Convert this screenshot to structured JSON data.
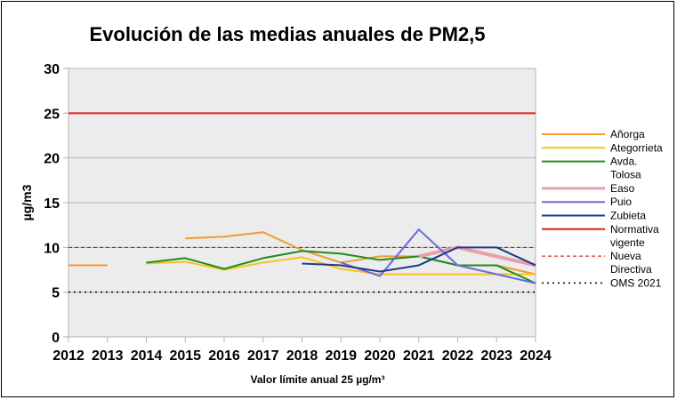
{
  "chart_data": {
    "type": "line",
    "title": "Evolución de las medias anuales de PM2,5",
    "xlabel": "Valor límite anual 25 µg/m³",
    "ylabel": "µg/m3",
    "ylim": [
      0,
      30
    ],
    "yticks": [
      0,
      5,
      10,
      15,
      20,
      25,
      30
    ],
    "x": [
      2012,
      2013,
      2014,
      2015,
      2016,
      2017,
      2018,
      2019,
      2020,
      2021,
      2022,
      2023,
      2024
    ],
    "grid": true,
    "legend_position": "right",
    "series": [
      {
        "name": "Añorga",
        "color": "#f39a2e",
        "width": 2,
        "dash": "",
        "values": [
          8,
          8,
          null,
          11,
          11.2,
          11.7,
          9.7,
          8.3,
          9,
          9,
          8,
          8,
          7
        ]
      },
      {
        "name": "Ategorrieta",
        "color": "#f5c518",
        "width": 2,
        "dash": "",
        "values": [
          null,
          null,
          8.2,
          8.4,
          7.5,
          8.3,
          8.9,
          7.6,
          7,
          7,
          7,
          7,
          7
        ]
      },
      {
        "name": "Avda.\nTolosa",
        "color": "#1e8c1e",
        "width": 2,
        "dash": "",
        "values": [
          null,
          null,
          8.3,
          8.8,
          7.6,
          8.8,
          9.6,
          9.3,
          8.6,
          9,
          8,
          8,
          6
        ]
      },
      {
        "name": "Easo",
        "color": "#e8a0a8",
        "width": 4,
        "dash": "",
        "values": [
          null,
          null,
          null,
          null,
          null,
          null,
          null,
          null,
          null,
          9,
          10,
          9,
          8
        ]
      },
      {
        "name": "Puio",
        "color": "#6a6ae0",
        "width": 2,
        "dash": "",
        "values": [
          null,
          null,
          null,
          null,
          null,
          null,
          null,
          8.3,
          6.8,
          12,
          8,
          7,
          6
        ]
      },
      {
        "name": "Zubieta",
        "color": "#1f3a8a",
        "width": 2,
        "dash": "",
        "values": [
          null,
          null,
          null,
          null,
          null,
          null,
          8.2,
          8,
          7.3,
          8,
          10,
          10,
          8
        ]
      },
      {
        "name": "Normativa\nvigente",
        "color": "#e02020",
        "width": 2,
        "dash": "",
        "values": [
          25,
          25,
          25,
          25,
          25,
          25,
          25,
          25,
          25,
          25,
          25,
          25,
          25
        ]
      },
      {
        "name": "Nueva\nDirectiva",
        "color": "#c00000",
        "width": 1,
        "dash": "4,3",
        "values": [
          10,
          10,
          10,
          10,
          10,
          10,
          10,
          10,
          10,
          10,
          10,
          10,
          10
        ]
      },
      {
        "name": "OMS 2021",
        "color": "#000000",
        "width": 1.5,
        "dash": "2,4",
        "values": [
          5,
          5,
          5,
          5,
          5,
          5,
          5,
          5,
          5,
          5,
          5,
          5,
          5
        ]
      }
    ]
  }
}
